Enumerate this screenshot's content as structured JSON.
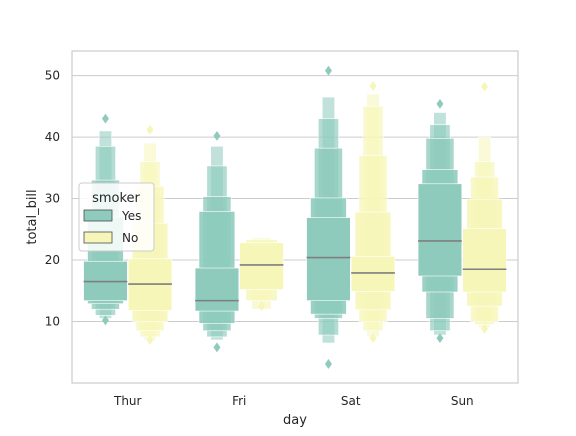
{
  "chart_data": {
    "type": "boxen",
    "xlabel": "day",
    "ylabel": "total_bill",
    "categories": [
      "Thur",
      "Fri",
      "Sat",
      "Sun"
    ],
    "ylim": [
      0,
      54
    ],
    "yticks": [
      10,
      20,
      30,
      40,
      50
    ],
    "grid": true,
    "legend": {
      "title": "smoker",
      "placement": "center-left",
      "entries": [
        {
          "label": "Yes",
          "color": "#8ecbbd"
        },
        {
          "label": "No",
          "color": "#f6f6b9"
        }
      ]
    },
    "series": [
      {
        "name": "Yes",
        "color": "#8ecbbd",
        "boxes": [
          {
            "day": "Thur",
            "median": 16.5,
            "levels": [
              [
                13.4,
                19.8
              ],
              [
                12.9,
                27.0
              ],
              [
                12.0,
                33.0
              ],
              [
                11.0,
                38.5
              ],
              [
                10.5,
                41.0
              ]
            ],
            "outliers": [
              10.2,
              43.0
            ]
          },
          {
            "day": "Fri",
            "median": 13.4,
            "levels": [
              [
                11.7,
                18.7
              ],
              [
                9.7,
                27.9
              ],
              [
                8.5,
                30.3
              ],
              [
                7.5,
                35.3
              ],
              [
                7.0,
                38.5
              ]
            ],
            "outliers": [
              5.8,
              40.2
            ]
          },
          {
            "day": "Sat",
            "median": 20.4,
            "levels": [
              [
                13.4,
                26.9
              ],
              [
                11.2,
                30.1
              ],
              [
                10.5,
                38.2
              ],
              [
                7.8,
                43.0
              ],
              [
                6.5,
                46.5
              ]
            ],
            "outliers": [
              3.1,
              50.8
            ]
          },
          {
            "day": "Sun",
            "median": 23.1,
            "levels": [
              [
                17.4,
                32.4
              ],
              [
                14.8,
                34.7
              ],
              [
                10.5,
                39.8
              ],
              [
                8.5,
                42.0
              ],
              [
                7.8,
                44.0
              ]
            ],
            "outliers": [
              7.3,
              45.4
            ]
          }
        ]
      },
      {
        "name": "No",
        "color": "#f6f6b9",
        "boxes": [
          {
            "day": "Thur",
            "median": 16.1,
            "levels": [
              [
                11.8,
                20.2
              ],
              [
                10.0,
                26.0
              ],
              [
                8.5,
                32.0
              ],
              [
                7.5,
                36.0
              ],
              [
                7.0,
                39.0
              ]
            ],
            "outliers": [
              7.0,
              41.2
            ]
          },
          {
            "day": "Fri",
            "median": 19.2,
            "levels": [
              [
                15.2,
                22.8
              ],
              [
                13.4,
                23.3
              ],
              [
                12.0,
                23.6
              ]
            ],
            "outliers": [
              12.5
            ]
          },
          {
            "day": "Sat",
            "median": 17.9,
            "levels": [
              [
                14.9,
                20.6
              ],
              [
                11.9,
                27.8
              ],
              [
                10.0,
                37.0
              ],
              [
                8.5,
                45.0
              ],
              [
                7.5,
                47.0
              ]
            ],
            "outliers": [
              7.3,
              48.3
            ]
          },
          {
            "day": "Sun",
            "median": 18.5,
            "levels": [
              [
                14.8,
                25.1
              ],
              [
                12.5,
                29.9
              ],
              [
                10.0,
                33.5
              ],
              [
                9.5,
                36.0
              ],
              [
                9.0,
                40.0
              ]
            ],
            "outliers": [
              8.8,
              48.2
            ]
          }
        ]
      }
    ]
  }
}
